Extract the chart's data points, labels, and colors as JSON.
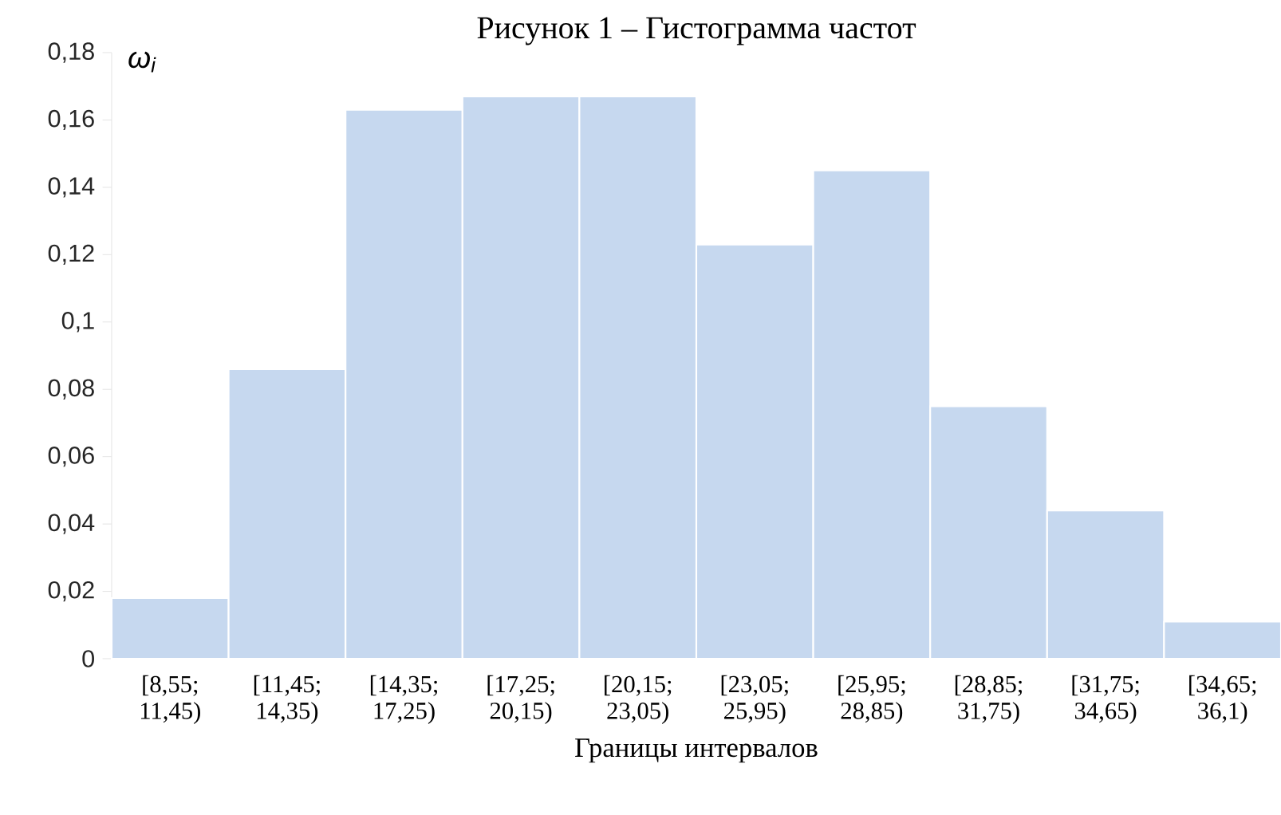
{
  "chart_data": {
    "type": "bar",
    "title": "Рисунок 1 – Гистограмма частот",
    "xlabel": "Границы интервалов",
    "ylabel": "ω$_{i}$",
    "categories": [
      "[8,55; 11,45)",
      "[11,45; 14,35)",
      "[14,35; 17,25)",
      "[17,25; 20,15)",
      "[20,15; 23,05)",
      "[23,05; 25,95)",
      "[25,95; 28,85)",
      "[28,85; 31,75)",
      "[31,75; 34,65)",
      "[34,65; 36,1)"
    ],
    "values": [
      0.018,
      0.086,
      0.163,
      0.167,
      0.167,
      0.123,
      0.145,
      0.075,
      0.044,
      0.011
    ],
    "color": "#c6d8ef",
    "ylim": [
      0,
      0.18
    ],
    "yticks": [
      {
        "value": 0,
        "label": "0"
      },
      {
        "value": 0.02,
        "label": "0,02"
      },
      {
        "value": 0.04,
        "label": "0,04"
      },
      {
        "value": 0.06,
        "label": "0,06"
      },
      {
        "value": 0.08,
        "label": "0,08"
      },
      {
        "value": 0.1,
        "label": "0,1"
      },
      {
        "value": 0.12,
        "label": "0,12"
      },
      {
        "value": 0.14,
        "label": "0,14"
      },
      {
        "value": 0.16,
        "label": "0,16"
      },
      {
        "value": 0.18,
        "label": "0,18"
      }
    ],
    "grid": false
  }
}
